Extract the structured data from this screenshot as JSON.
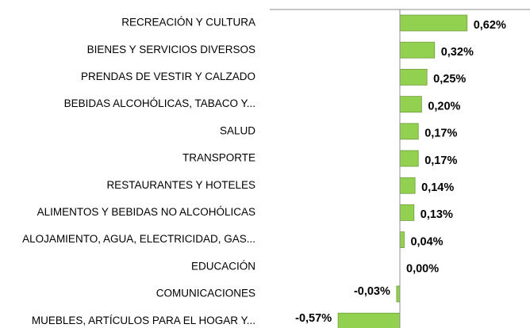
{
  "chart_data": {
    "type": "bar",
    "orientation": "horizontal",
    "categories": [
      "RECREACIÓN Y CULTURA",
      "BIENES Y SERVICIOS DIVERSOS",
      "PRENDAS DE VESTIR Y CALZADO",
      "BEBIDAS ALCOHÓLICAS, TABACO Y...",
      "SALUD",
      "TRANSPORTE",
      "RESTAURANTES Y HOTELES",
      "ALIMENTOS Y BEBIDAS NO ALCOHÓLICAS",
      "ALOJAMIENTO, AGUA, ELECTRICIDAD, GAS...",
      "EDUCACIÓN",
      "COMUNICACIONES",
      "MUEBLES, ARTÍCULOS PARA EL HOGAR Y..."
    ],
    "values": [
      0.62,
      0.32,
      0.25,
      0.2,
      0.17,
      0.17,
      0.14,
      0.13,
      0.04,
      0.0,
      -0.03,
      -0.57
    ],
    "value_labels": [
      "0,62%",
      "0,32%",
      "0,25%",
      "0,20%",
      "0,17%",
      "0,17%",
      "0,14%",
      "0,13%",
      "0,04%",
      "0,00%",
      "-0,03%",
      "-0,57%"
    ],
    "color": "#92d050",
    "xlim": [
      -1.2,
      1.2
    ]
  }
}
